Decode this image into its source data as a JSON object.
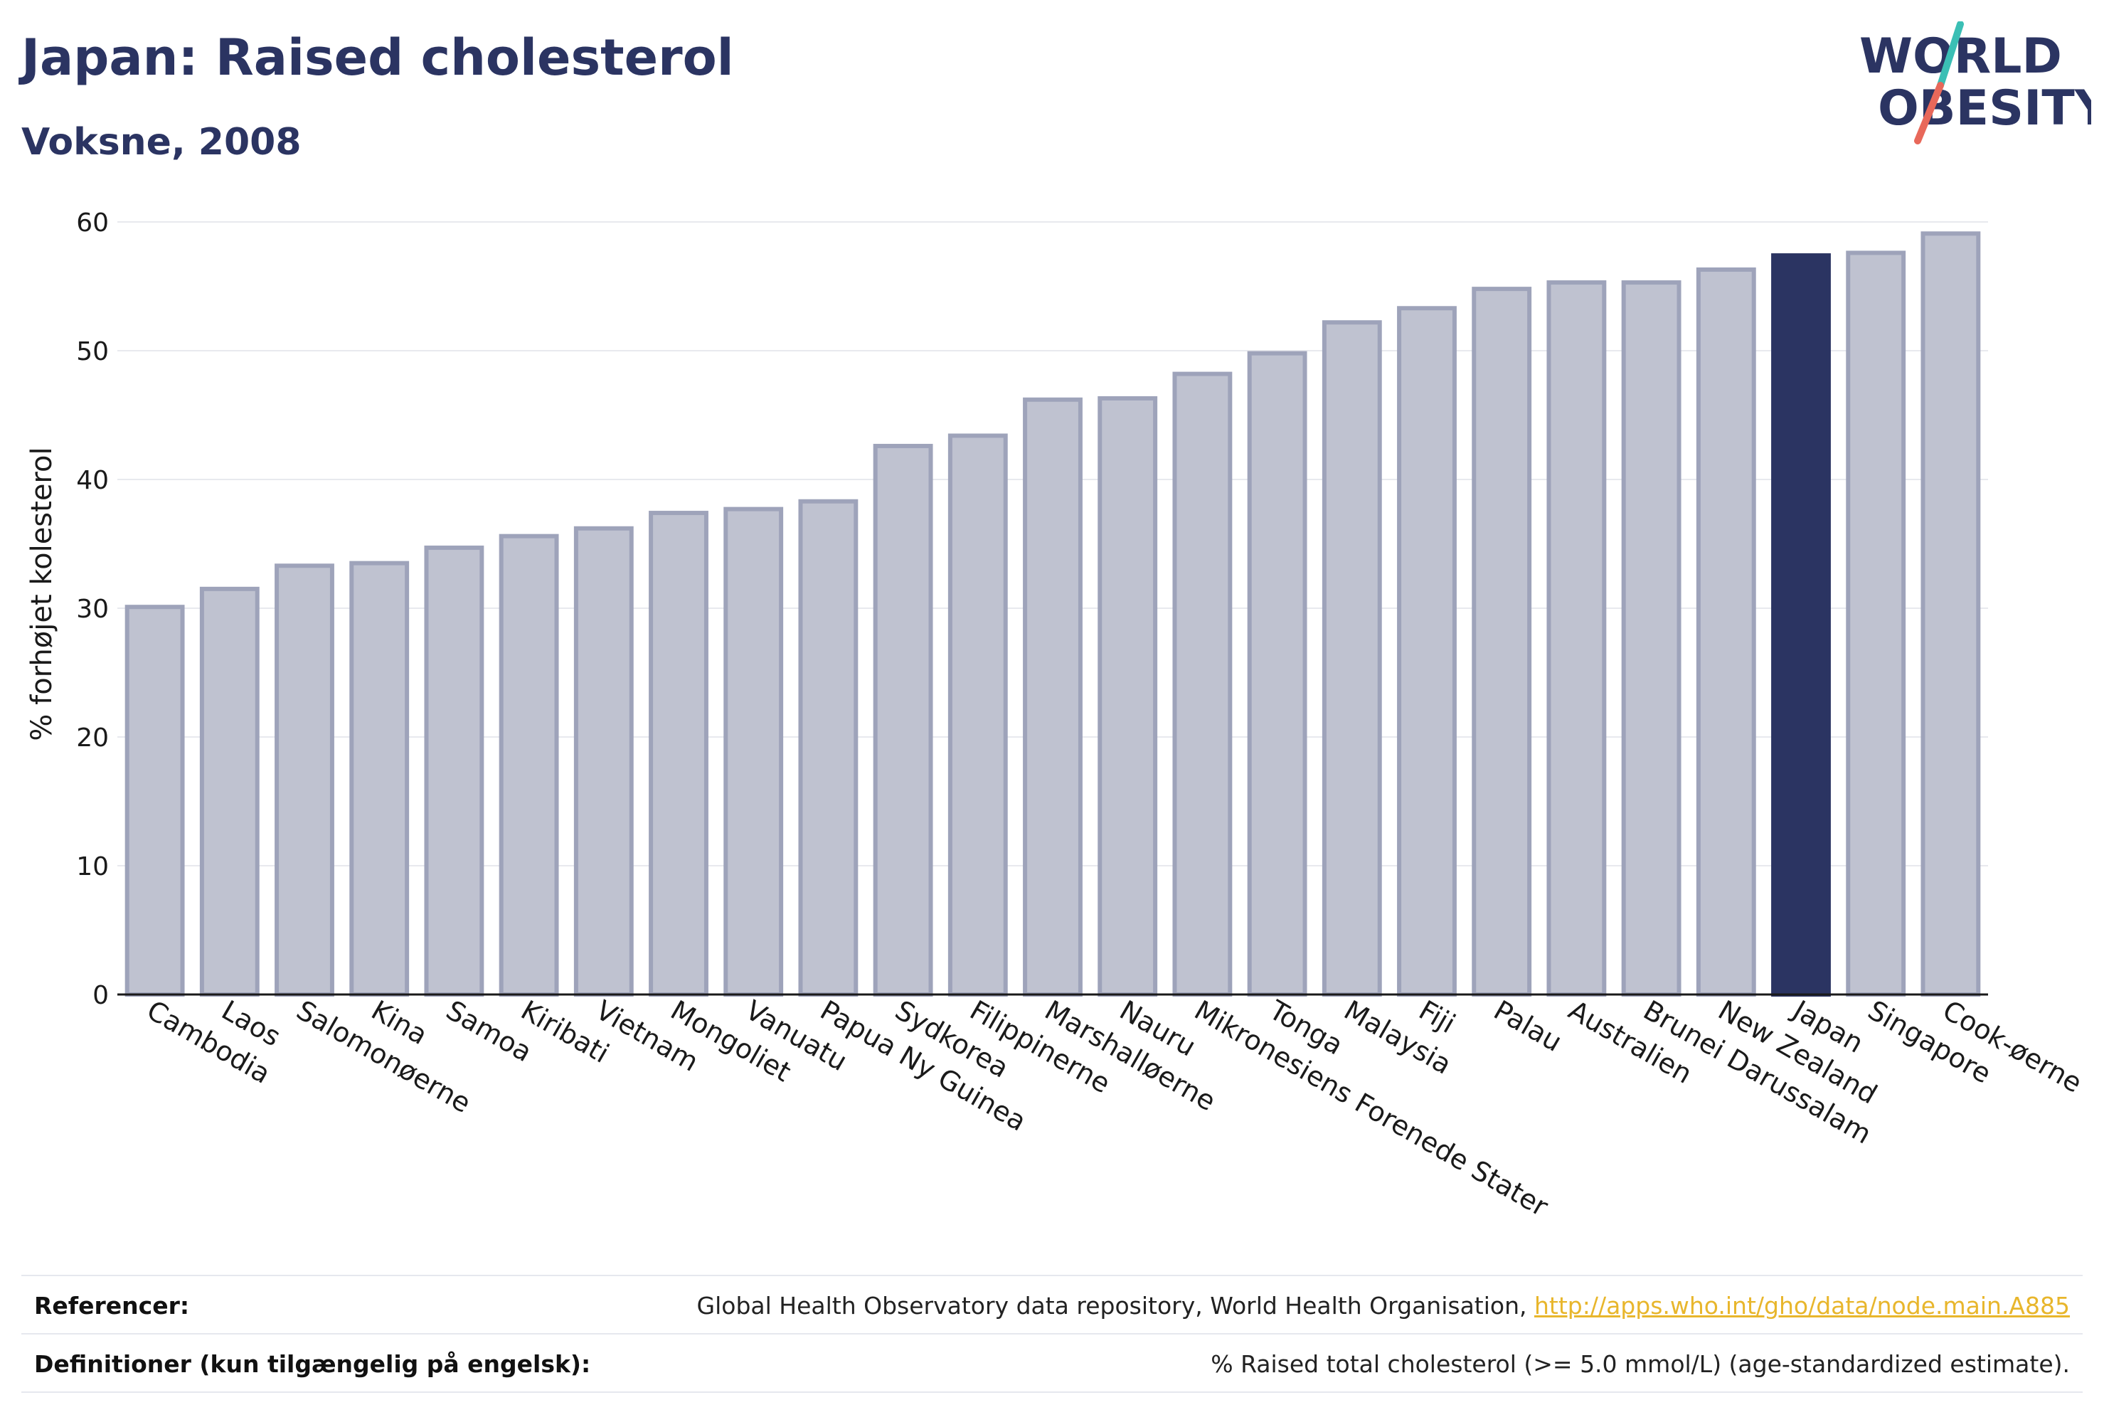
{
  "header": {
    "title": "Japan: Raised cholesterol",
    "subtitle": "Voksne, 2008"
  },
  "logo": {
    "line1": "WORLD",
    "line2": "OBESITY",
    "colors": {
      "text": "#2b3462",
      "accent_teal": "#3bbfb5",
      "accent_red": "#e8685a"
    }
  },
  "colors": {
    "bar_default": "#bfc2d0",
    "bar_default_stroke": "#9ea3ba",
    "bar_highlight": "#2b3462",
    "grid": "#e8e9ee",
    "axis": "#1a1a1a"
  },
  "chart_data": {
    "type": "bar",
    "title": "Japan: Raised cholesterol",
    "subtitle": "Voksne, 2008",
    "ylabel": "% forhøjet kolesterol",
    "xlabel": "",
    "ylim": [
      0,
      60
    ],
    "yticks": [
      0,
      10,
      20,
      30,
      40,
      50,
      60
    ],
    "grid": true,
    "highlight": "Japan",
    "categories": [
      "Cambodia",
      "Laos",
      "Salomonøerne",
      "Kina",
      "Samoa",
      "Kiribati",
      "Vietnam",
      "Mongoliet",
      "Vanuatu",
      "Papua Ny Guinea",
      "Sydkorea",
      "Filippinerne",
      "Marshalløerne",
      "Nauru",
      "Mikronesiens Forenede Stater",
      "Tonga",
      "Malaysia",
      "Fiji",
      "Palau",
      "Australien",
      "Brunei Darussalam",
      "New Zealand",
      "Japan",
      "Singapore",
      "Cook-øerne"
    ],
    "values": [
      30.1,
      31.5,
      33.3,
      33.5,
      34.7,
      35.6,
      36.2,
      37.4,
      37.7,
      38.3,
      42.6,
      43.4,
      46.2,
      46.3,
      48.2,
      49.8,
      52.2,
      53.3,
      54.8,
      55.3,
      55.3,
      56.3,
      57.4,
      57.6,
      59.1
    ]
  },
  "footer": {
    "references_label": "Referencer:",
    "references_text": "Global Health Observatory data repository, World Health Organisation, ",
    "references_link": "http://apps.who.int/gho/data/node.main.A885",
    "definitions_label": "Definitioner (kun tilgængelig på engelsk):",
    "definitions_text": "% Raised total cholesterol (>= 5.0 mmol/L) (age-standardized estimate)."
  }
}
